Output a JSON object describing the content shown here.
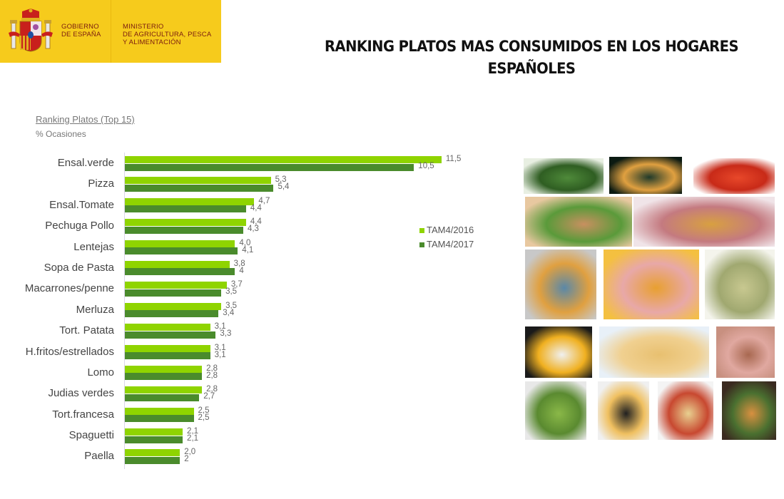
{
  "header": {
    "gobierno": [
      "GOBIERNO",
      "DE ESPAÑA"
    ],
    "ministerio": [
      "MINISTERIO",
      "DE AGRICULTURA, PESCA",
      "Y ALIMENTACIÓN"
    ],
    "band_color": "#f6cb1c"
  },
  "title": {
    "line1": "RANKING PLATOS MAS CONSUMIDOS EN LOS HOGARES",
    "line2": "ESPAÑOLES"
  },
  "chart_data": {
    "type": "bar",
    "orientation": "horizontal",
    "title": "Ranking Platos (Top 15)",
    "subtitle": "% Ocasiones",
    "xlabel": "",
    "ylabel": "",
    "grid": false,
    "legend_position": "right",
    "categories": [
      "Ensal.verde",
      "Pizza",
      "Ensal.Tomate",
      "Pechuga Pollo",
      "Lentejas",
      "Sopa de Pasta",
      "Macarrones/penne",
      "Merluza",
      "Tort. Patata",
      "H.fritos/estrellados",
      "Lomo",
      "Judias verdes",
      "Tort.francesa",
      "Spaguetti",
      "Paella"
    ],
    "series": [
      {
        "name": "TAM4/2016",
        "color": "#8fd400",
        "values": [
          11.5,
          5.3,
          4.7,
          4.4,
          4.0,
          3.8,
          3.7,
          3.5,
          3.1,
          3.1,
          2.8,
          2.8,
          2.5,
          2.1,
          2.0
        ],
        "labels": [
          "11,5",
          "5,3",
          "4,7",
          "4,4",
          "4,0",
          "3,8",
          "3,7",
          "3,5",
          "3,1",
          "3,1",
          "2,8",
          "2,8",
          "2,5",
          "2,1",
          "2,0"
        ]
      },
      {
        "name": "TAM4/2017",
        "color": "#4a8b2c",
        "values": [
          10.5,
          5.4,
          4.4,
          4.3,
          4.1,
          4,
          3.5,
          3.4,
          3.3,
          3.1,
          2.8,
          2.7,
          2.5,
          2.1,
          2
        ],
        "labels": [
          "10,5",
          "5,4",
          "4,4",
          "4,3",
          "4,1",
          "4",
          "3,5",
          "3,4",
          "3,3",
          "3,1",
          "2,8",
          "2,7",
          "2,5",
          "2,1",
          "2"
        ]
      }
    ]
  },
  "photos": [
    {
      "name": "green-salad-photo",
      "colors": [
        "#e8efe2",
        "#4f8a3a",
        "#2f5e22"
      ]
    },
    {
      "name": "pizza-photo",
      "colors": [
        "#0b1a12",
        "#203a2a",
        "#e0a040"
      ]
    },
    {
      "name": "tomato-salad-photo",
      "colors": [
        "#ffffff",
        "#e8482a",
        "#c82a18"
      ]
    },
    {
      "name": "chicken-breast-photo",
      "colors": [
        "#e8c8a0",
        "#c89060",
        "#5a9a3a"
      ]
    },
    {
      "name": "soup-photo",
      "colors": [
        "#f0e4e8",
        "#d8a040",
        "#c47a80"
      ]
    },
    {
      "name": "lentils-photo",
      "colors": [
        "#c8c8c8",
        "#5a88a8",
        "#e0a040"
      ]
    },
    {
      "name": "macaroni-photo",
      "colors": [
        "#f4c040",
        "#e8a030",
        "#e8a8a8"
      ]
    },
    {
      "name": "hake-photo",
      "colors": [
        "#f4f4ec",
        "#c8c890",
        "#a0a870"
      ]
    },
    {
      "name": "fried-eggs-photo",
      "colors": [
        "#1a1a1a",
        "#f0f0f0",
        "#f0b020"
      ]
    },
    {
      "name": "potato-omelette-photo",
      "colors": [
        "#e8f0f8",
        "#e8c070",
        "#f0d090"
      ]
    },
    {
      "name": "pork-loin-photo",
      "colors": [
        "#c89080",
        "#a86850",
        "#e0a8a0"
      ]
    },
    {
      "name": "green-beans-photo",
      "colors": [
        "#e8e8e8",
        "#8ab848",
        "#5a8a30"
      ]
    },
    {
      "name": "french-omelette-photo",
      "colors": [
        "#f0f0f0",
        "#202020",
        "#f0c060"
      ]
    },
    {
      "name": "spaghetti-photo",
      "colors": [
        "#f4f4f4",
        "#e8d090",
        "#c84830"
      ]
    },
    {
      "name": "paella-photo",
      "colors": [
        "#3a2a20",
        "#d89040",
        "#4a7030"
      ]
    }
  ]
}
